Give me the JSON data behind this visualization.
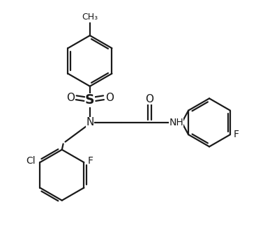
{
  "bg_color": "#ffffff",
  "line_color": "#1a1a1a",
  "line_width": 1.6,
  "font_size": 10,
  "figsize": [
    3.67,
    3.46
  ],
  "dpi": 100,
  "xlim": [
    0,
    10
  ],
  "ylim": [
    0,
    9.4
  ]
}
